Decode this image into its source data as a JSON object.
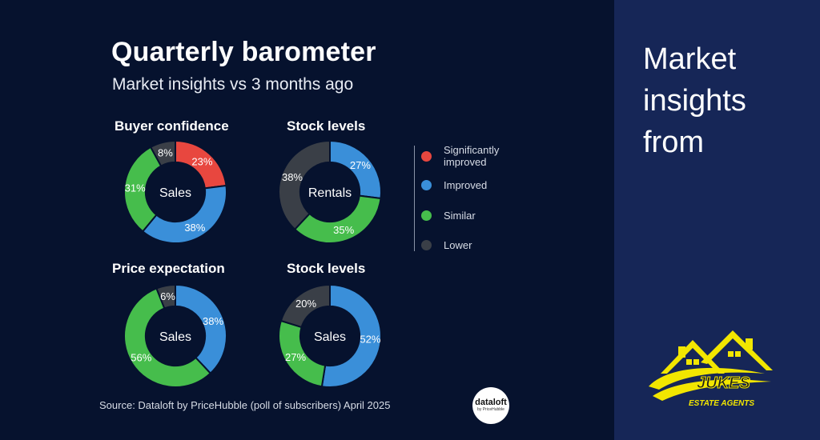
{
  "header": {
    "title": "Quarterly barometer",
    "subtitle": "Market insights vs 3 months ago"
  },
  "colors": {
    "significantly_improved": "#e8473f",
    "improved": "#3a8fd9",
    "similar": "#46bd4c",
    "lower": "#3a3f47",
    "background": "#06122e",
    "side_panel": "#162657",
    "logo_yellow": "#f2e600"
  },
  "legend": [
    {
      "label": "Significantly improved",
      "key": "significantly_improved"
    },
    {
      "label": "Improved",
      "key": "improved"
    },
    {
      "label": "Similar",
      "key": "similar"
    },
    {
      "label": "Lower",
      "key": "lower"
    }
  ],
  "chart_data": [
    {
      "type": "pie",
      "title": "Buyer confidence",
      "center_label": "Sales",
      "slices": [
        {
          "category": "Significantly improved",
          "value": 23,
          "label": "23%"
        },
        {
          "category": "Improved",
          "value": 38,
          "label": "38%"
        },
        {
          "category": "Similar",
          "value": 31,
          "label": "31%"
        },
        {
          "category": "Lower",
          "value": 8,
          "label": "8%"
        }
      ]
    },
    {
      "type": "pie",
      "title": "Stock levels",
      "center_label": "Rentals",
      "slices": [
        {
          "category": "Improved",
          "value": 27,
          "label": "27%"
        },
        {
          "category": "Similar",
          "value": 35,
          "label": "35%"
        },
        {
          "category": "Lower",
          "value": 38,
          "label": "38%"
        }
      ]
    },
    {
      "type": "pie",
      "title": "Price expectation",
      "center_label": "Sales",
      "slices": [
        {
          "category": "Improved",
          "value": 38,
          "label": "38%"
        },
        {
          "category": "Similar",
          "value": 56,
          "label": "56%"
        },
        {
          "category": "Lower",
          "value": 6,
          "label": "6%"
        }
      ]
    },
    {
      "type": "pie",
      "title": "Stock levels",
      "center_label": "Sales",
      "slices": [
        {
          "category": "Improved",
          "value": 52,
          "label": "52%"
        },
        {
          "category": "Similar",
          "value": 27,
          "label": "27%"
        },
        {
          "category": "Lower",
          "value": 20,
          "label": "20%"
        }
      ]
    }
  ],
  "footer": {
    "source": "Source: Dataloft by PriceHubble (poll of subscribers) April 2025",
    "badge_main": "dataloft",
    "badge_sub": "by PriceHubble"
  },
  "side": {
    "heading": "Market insights from",
    "logo_name": "JUKES",
    "logo_tagline": "ESTATE AGENTS"
  }
}
